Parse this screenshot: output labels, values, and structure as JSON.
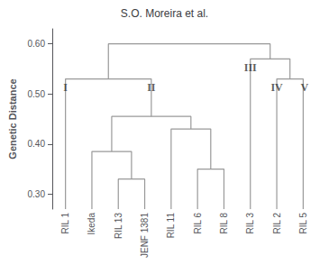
{
  "chart_data": {
    "type": "dendrogram",
    "title": "S.O. Moreira et al.",
    "ylabel": "Genetic Distance",
    "categories": [
      "RIL 1",
      "Ikeda",
      "RIL 13",
      "JENF 1381",
      "RIL 11",
      "RIL 6",
      "RIL 8",
      "RIL 3",
      "RIL 2",
      "RIL 5"
    ],
    "tree": {
      "height": 0.6,
      "children": [
        {
          "height": 0.53,
          "children": [
            "RIL 1",
            {
              "height": 0.455,
              "children": [
                {
                  "height": 0.385,
                  "children": [
                    "Ikeda",
                    {
                      "height": 0.33,
                      "children": [
                        "RIL 13",
                        "JENF 1381"
                      ]
                    }
                  ]
                },
                {
                  "height": 0.43,
                  "children": [
                    "RIL 11",
                    {
                      "height": 0.35,
                      "children": [
                        "RIL 6",
                        "RIL 8"
                      ]
                    }
                  ]
                }
              ]
            }
          ]
        },
        {
          "height": 0.57,
          "children": [
            "RIL 3",
            {
              "height": 0.53,
              "children": [
                "RIL 2",
                "RIL 5"
              ]
            }
          ]
        }
      ]
    },
    "annotations": [
      {
        "text": "I",
        "x": 1.0,
        "y": 0.502
      },
      {
        "text": "II",
        "x": 4.25,
        "y": 0.502
      },
      {
        "text": "III",
        "x": 8.0,
        "y": 0.542
      },
      {
        "text": "IV",
        "x": 9.0,
        "y": 0.502
      },
      {
        "text": "V",
        "x": 10.05,
        "y": 0.502
      }
    ],
    "color": "#999999",
    "ylim": [
      0.27,
      0.63
    ],
    "yticks": [
      {
        "value": 0.3,
        "label": "0.30"
      },
      {
        "value": 0.4,
        "label": "0.40"
      },
      {
        "value": 0.5,
        "label": "0.50"
      },
      {
        "value": 0.6,
        "label": "0.60"
      }
    ],
    "grid": false
  }
}
